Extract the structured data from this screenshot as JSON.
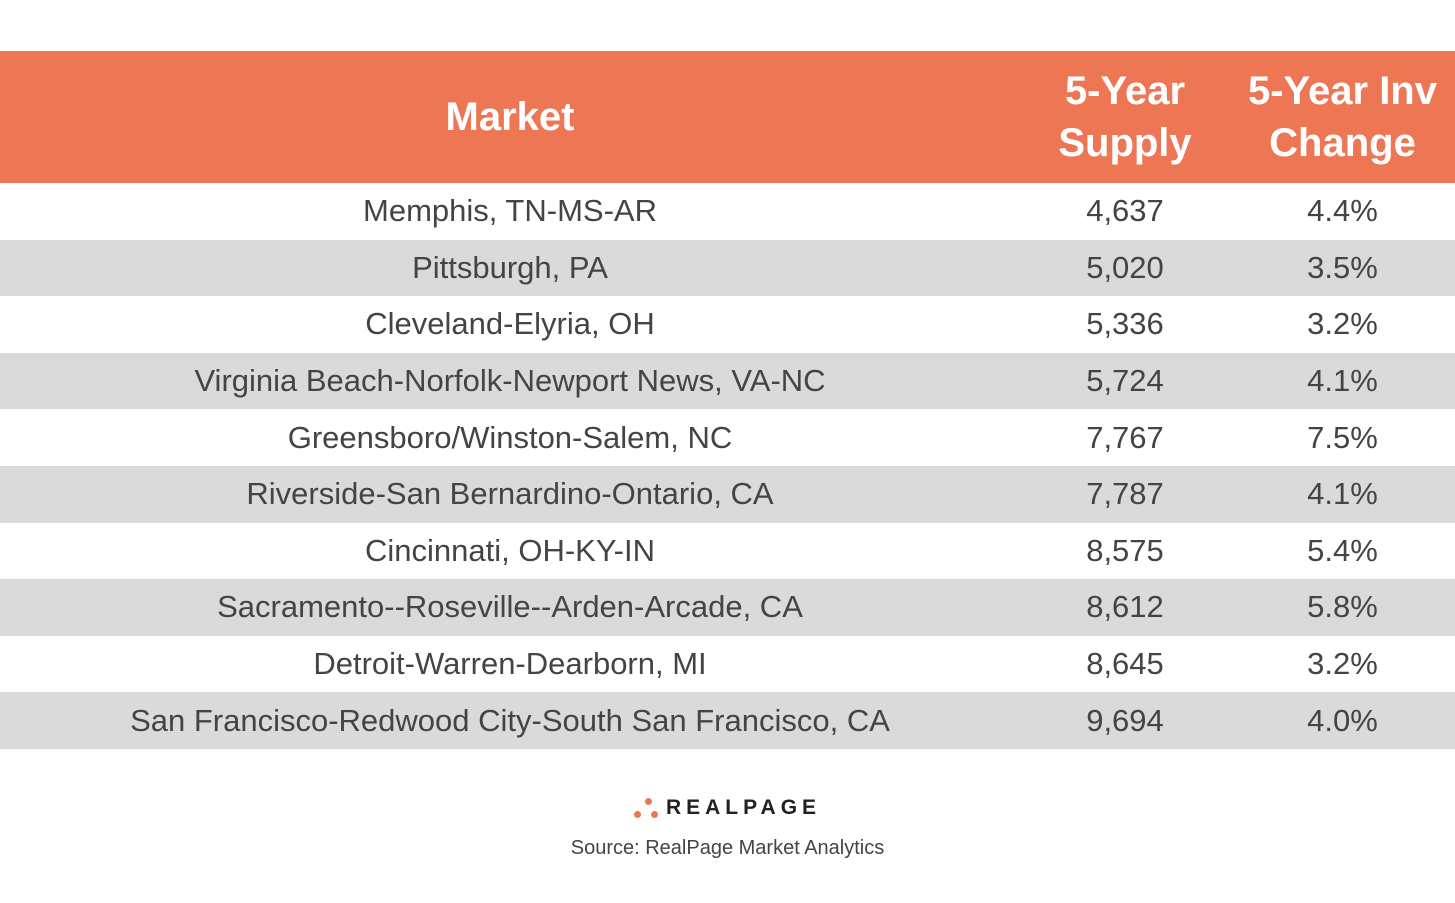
{
  "chart_data": {
    "type": "table",
    "columns": [
      "Market",
      "5-Year Supply",
      "5-Year Inv Change"
    ],
    "header_lines": [
      [
        "Market"
      ],
      [
        "5-Year",
        "Supply"
      ],
      [
        "5-Year Inv",
        "Change"
      ]
    ],
    "rows": [
      [
        "Memphis, TN-MS-AR",
        "4,637",
        "4.4%"
      ],
      [
        "Pittsburgh, PA",
        "5,020",
        "3.5%"
      ],
      [
        "Cleveland-Elyria, OH",
        "5,336",
        "3.2%"
      ],
      [
        "Virginia Beach-Norfolk-Newport News, VA-NC",
        "5,724",
        "4.1%"
      ],
      [
        "Greensboro/Winston-Salem, NC",
        "7,767",
        "7.5%"
      ],
      [
        "Riverside-San Bernardino-Ontario, CA",
        "7,787",
        "4.1%"
      ],
      [
        "Cincinnati, OH-KY-IN",
        "8,575",
        "5.4%"
      ],
      [
        "Sacramento--Roseville--Arden-Arcade, CA",
        "8,612",
        "5.8%"
      ],
      [
        "Detroit-Warren-Dearborn, MI",
        "8,645",
        "3.2%"
      ],
      [
        "San Francisco-Redwood City-South San Francisco, CA",
        "9,694",
        "4.0%"
      ]
    ]
  },
  "logo": {
    "text": "REALPAGE"
  },
  "source": "Source: RealPage Market Analytics",
  "colors": {
    "header": "#ED7754",
    "stripe": "#DADADA"
  }
}
